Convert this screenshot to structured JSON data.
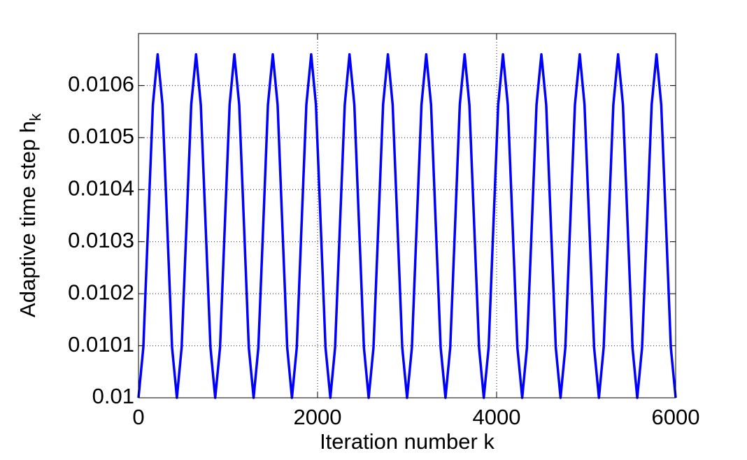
{
  "chart_data": {
    "type": "line",
    "xlabel": "Iteration number k",
    "ylabel": {
      "text": "Adaptive time step h",
      "subscript": "k"
    },
    "xlim": [
      0,
      6000
    ],
    "xticks": [
      0,
      2000,
      4000,
      6000
    ],
    "ylim": [
      0.01,
      0.0107
    ],
    "yticks": [
      0.01,
      0.0101,
      0.0102,
      0.0103,
      0.0104,
      0.0105,
      0.0106
    ],
    "grid": true,
    "series": [
      {
        "color": "#0000ff",
        "x": [
          0,
          54,
          107,
          161,
          214,
          268,
          321,
          375,
          429,
          482,
          536,
          589,
          643,
          696,
          750,
          804,
          857,
          911,
          964,
          1018,
          1071,
          1125,
          1179,
          1232,
          1286,
          1339,
          1393,
          1446,
          1500,
          1554,
          1607,
          1661,
          1714,
          1768,
          1821,
          1875,
          1929,
          1982,
          2036,
          2089,
          2143,
          2196,
          2250,
          2304,
          2357,
          2411,
          2464,
          2518,
          2571,
          2625,
          2679,
          2732,
          2786,
          2839,
          2893,
          2946,
          3000,
          3054,
          3107,
          3161,
          3214,
          3268,
          3321,
          3375,
          3429,
          3482,
          3536,
          3589,
          3643,
          3696,
          3750,
          3804,
          3857,
          3911,
          3964,
          4018,
          4071,
          4125,
          4179,
          4232,
          4286,
          4339,
          4393,
          4446,
          4500,
          4554,
          4607,
          4661,
          4714,
          4768,
          4821,
          4875,
          4929,
          4982,
          5036,
          5089,
          5143,
          5196,
          5250,
          5304,
          5357,
          5411,
          5464,
          5518,
          5571,
          5625,
          5679,
          5732,
          5786,
          5839,
          5893,
          5946,
          6000
        ],
        "values": [
          0.01,
          0.0100967,
          0.01033,
          0.0105633,
          0.01066,
          0.0105633,
          0.01033,
          0.0100967,
          0.01,
          0.0100967,
          0.01033,
          0.0105633,
          0.01066,
          0.0105633,
          0.01033,
          0.0100967,
          0.01,
          0.0100967,
          0.01033,
          0.0105633,
          0.01066,
          0.0105633,
          0.01033,
          0.0100967,
          0.01,
          0.0100967,
          0.01033,
          0.0105633,
          0.01066,
          0.0105633,
          0.01033,
          0.0100967,
          0.01,
          0.0100967,
          0.01033,
          0.0105633,
          0.01066,
          0.0105633,
          0.01033,
          0.0100967,
          0.01,
          0.0100967,
          0.01033,
          0.0105633,
          0.01066,
          0.0105633,
          0.01033,
          0.0100967,
          0.01,
          0.0100967,
          0.01033,
          0.0105633,
          0.01066,
          0.0105633,
          0.01033,
          0.0100967,
          0.01,
          0.0100967,
          0.01033,
          0.0105633,
          0.01066,
          0.0105633,
          0.01033,
          0.0100967,
          0.01,
          0.0100967,
          0.01033,
          0.0105633,
          0.01066,
          0.0105633,
          0.01033,
          0.0100967,
          0.01,
          0.0100967,
          0.01033,
          0.0105633,
          0.01066,
          0.0105633,
          0.01033,
          0.0100967,
          0.01,
          0.0100967,
          0.01033,
          0.0105633,
          0.01066,
          0.0105633,
          0.01033,
          0.0100967,
          0.01,
          0.0100967,
          0.01033,
          0.0105633,
          0.01066,
          0.0105633,
          0.01033,
          0.0100967,
          0.01,
          0.0100967,
          0.01033,
          0.0105633,
          0.01066,
          0.0105633,
          0.01033,
          0.0100967,
          0.01,
          0.0100967,
          0.01033,
          0.0105633,
          0.01066,
          0.0105633,
          0.01033,
          0.0100967,
          0.01
        ]
      }
    ]
  }
}
